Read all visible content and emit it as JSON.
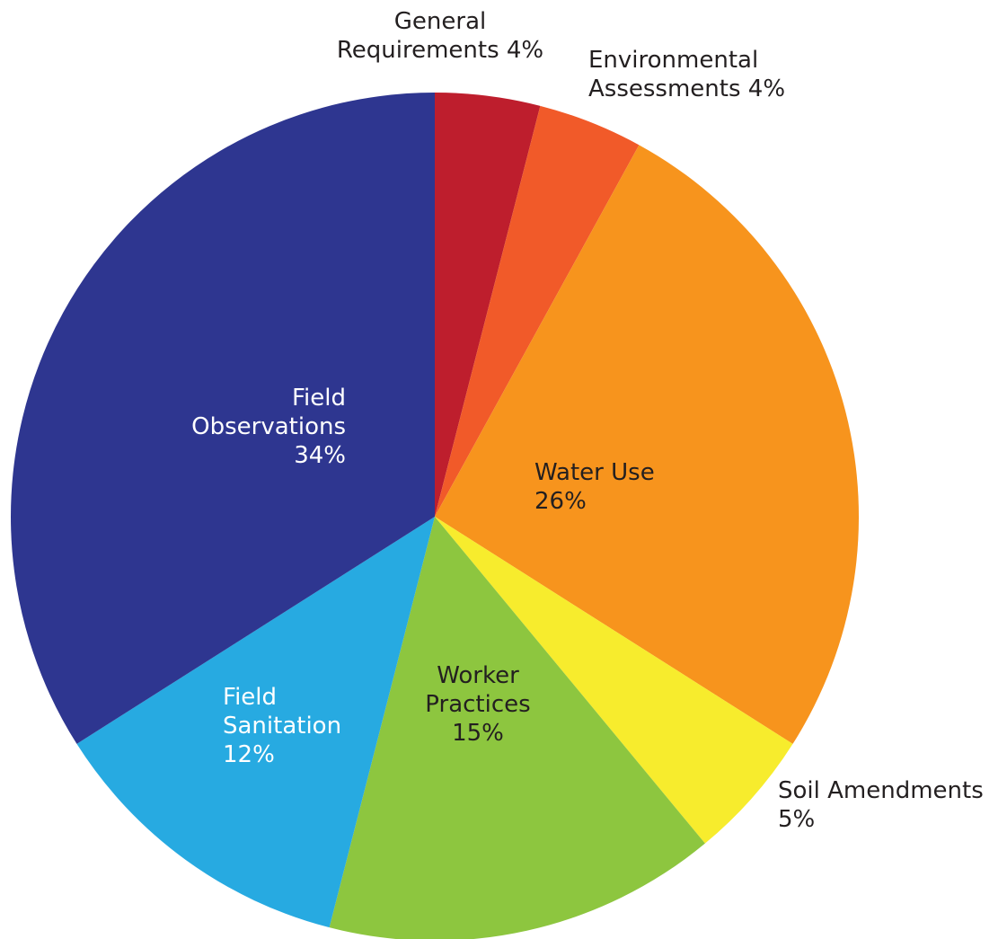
{
  "chart_data": {
    "type": "pie",
    "start_angle_deg": 0,
    "direction": "clockwise",
    "slices": [
      {
        "label_lines": [
          "General",
          "Requirements 4%"
        ],
        "value": 4,
        "color": "#BE1E2D",
        "label_color": "#231F20",
        "label_placement": "outside"
      },
      {
        "label_lines": [
          "Environmental",
          "Assessments 4%"
        ],
        "value": 4,
        "color": "#F15A29",
        "label_color": "#231F20",
        "label_placement": "outside"
      },
      {
        "label_lines": [
          "Water Use",
          "26%"
        ],
        "value": 26,
        "color": "#F7941D",
        "label_color": "#231F20",
        "label_placement": "inside"
      },
      {
        "label_lines": [
          "Soil Amendments",
          "5%"
        ],
        "value": 5,
        "color": "#F7EC2D",
        "label_color": "#231F20",
        "label_placement": "outside"
      },
      {
        "label_lines": [
          "Worker",
          "Practices",
          "15%"
        ],
        "value": 15,
        "color": "#8DC63F",
        "label_color": "#231F20",
        "label_placement": "inside"
      },
      {
        "label_lines": [
          "Field",
          "Sanitation",
          "12%"
        ],
        "value": 12,
        "color": "#27AAE1",
        "label_color": "#FFFFFF",
        "label_placement": "inside"
      },
      {
        "label_lines": [
          "Field",
          "Observations",
          "34%"
        ],
        "value": 34,
        "color": "#2E3690",
        "label_color": "#FFFFFF",
        "label_placement": "inside"
      }
    ]
  }
}
